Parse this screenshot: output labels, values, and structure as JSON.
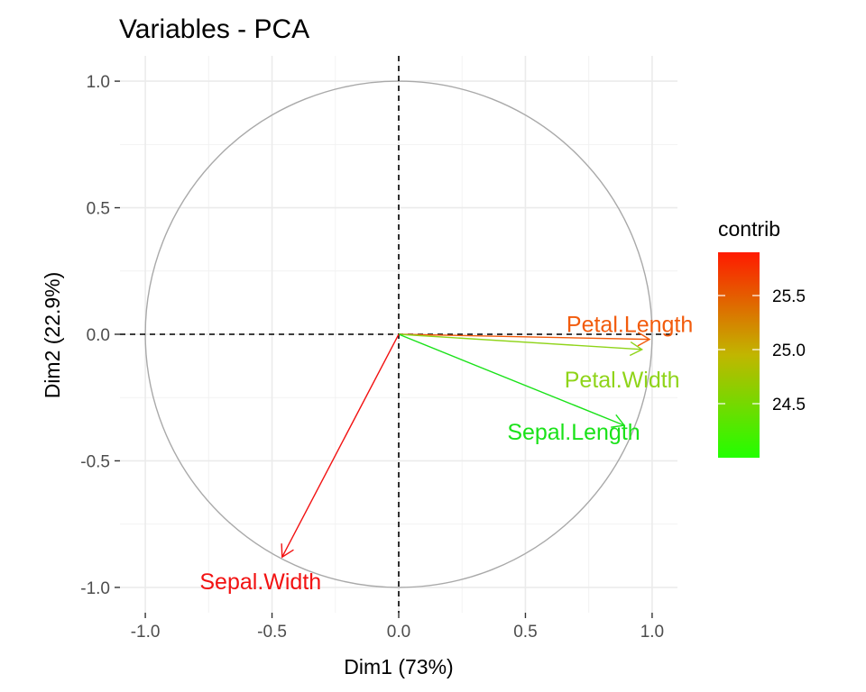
{
  "chart_data": {
    "type": "scatter",
    "subtype": "pca-variable-correlation-circle",
    "title": "Variables - PCA",
    "xlabel": "Dim1 (73%)",
    "ylabel": "Dim2 (22.9%)",
    "xlim": [
      -1.1,
      1.1
    ],
    "ylim": [
      -1.1,
      1.1
    ],
    "x_ticks": [
      -1.0,
      -0.5,
      0.0,
      0.5,
      1.0
    ],
    "y_ticks": [
      -1.0,
      -0.5,
      0.0,
      0.5,
      1.0
    ],
    "x_tick_labels": [
      "-1.0",
      "-0.5",
      "0.0",
      "0.5",
      "1.0"
    ],
    "y_tick_labels": [
      "-1.0",
      "-0.5",
      "0.0",
      "0.5",
      "1.0"
    ],
    "grid": true,
    "unit_circle": true,
    "reference_lines": {
      "x": 0,
      "y": 0,
      "style": "dashed"
    },
    "variables": [
      {
        "name": "Petal.Length",
        "x": 0.99,
        "y": -0.02,
        "contrib": 25.7,
        "color": "#f25b0c"
      },
      {
        "name": "Petal.Width",
        "x": 0.96,
        "y": -0.06,
        "contrib": 24.8,
        "color": "#8fd419"
      },
      {
        "name": "Sepal.Length",
        "x": 0.89,
        "y": -0.36,
        "contrib": 24.1,
        "color": "#1ae219"
      },
      {
        "name": "Sepal.Width",
        "x": -0.46,
        "y": -0.88,
        "contrib": 25.9,
        "color": "#f21212"
      }
    ],
    "legend": {
      "title": "contrib",
      "position": "right",
      "min": 24.0,
      "max": 25.9,
      "gradient": [
        "#22ff00",
        "#c1b600",
        "#ff1a00"
      ],
      "ticks": [
        24.5,
        25.0,
        25.5
      ],
      "tick_labels": [
        "24.5",
        "25.0",
        "25.5"
      ]
    }
  }
}
